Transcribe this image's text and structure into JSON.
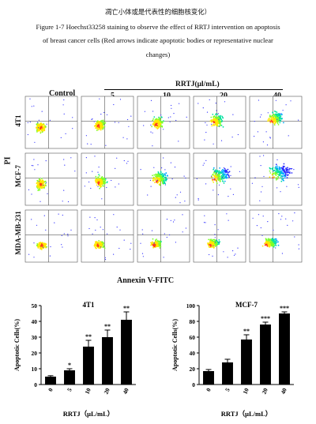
{
  "caption": {
    "title_cn": "凋亡小体或是代表性的细胞核变化）",
    "line1": "Figure 1-7 Hoechst33258 staining to observe the effect of RRTJ intervention on apoptosis",
    "line2": "of breast cancer cells (Red arrows indicate apoptotic bodies or representative nuclear",
    "line3": "changes)"
  },
  "flow": {
    "treatment_label": "RRTJ(μl/mL)",
    "columns": [
      "Control",
      "5",
      "10",
      "20",
      "40"
    ],
    "rows": [
      "4T1",
      "MCF-7",
      "MDA-MB-231"
    ],
    "y_axis_label": "PI",
    "x_axis_label": "Annexin V-FITC"
  },
  "chart_data": [
    {
      "type": "bar",
      "title": "4T1",
      "categories": [
        "0",
        "5",
        "10",
        "20",
        "40"
      ],
      "values": [
        5,
        9,
        24,
        30,
        41
      ],
      "errors": [
        0.6,
        1,
        4,
        4.5,
        5
      ],
      "significance": [
        "",
        "*",
        "**",
        "**",
        "**"
      ],
      "ylabel": "Apoptotic Cells(%)",
      "xlabel": "RRTJ（μL/mL）",
      "ylim": [
        0,
        50
      ],
      "yticks": [
        0,
        10,
        20,
        30,
        40,
        50
      ],
      "bar_color": "#000000"
    },
    {
      "type": "bar",
      "title": "MCF-7",
      "categories": [
        "0",
        "5",
        "10",
        "20",
        "40"
      ],
      "values": [
        17,
        28,
        57,
        76,
        90
      ],
      "errors": [
        2,
        4,
        6,
        3,
        2
      ],
      "significance": [
        "",
        "",
        "**",
        "***",
        "***"
      ],
      "ylabel": "Apoptotic Cells(%)",
      "xlabel": "RRTJ（μL/mL）",
      "ylim": [
        0,
        100
      ],
      "yticks": [
        0,
        20,
        40,
        60,
        80,
        100
      ],
      "bar_color": "#000000"
    }
  ]
}
